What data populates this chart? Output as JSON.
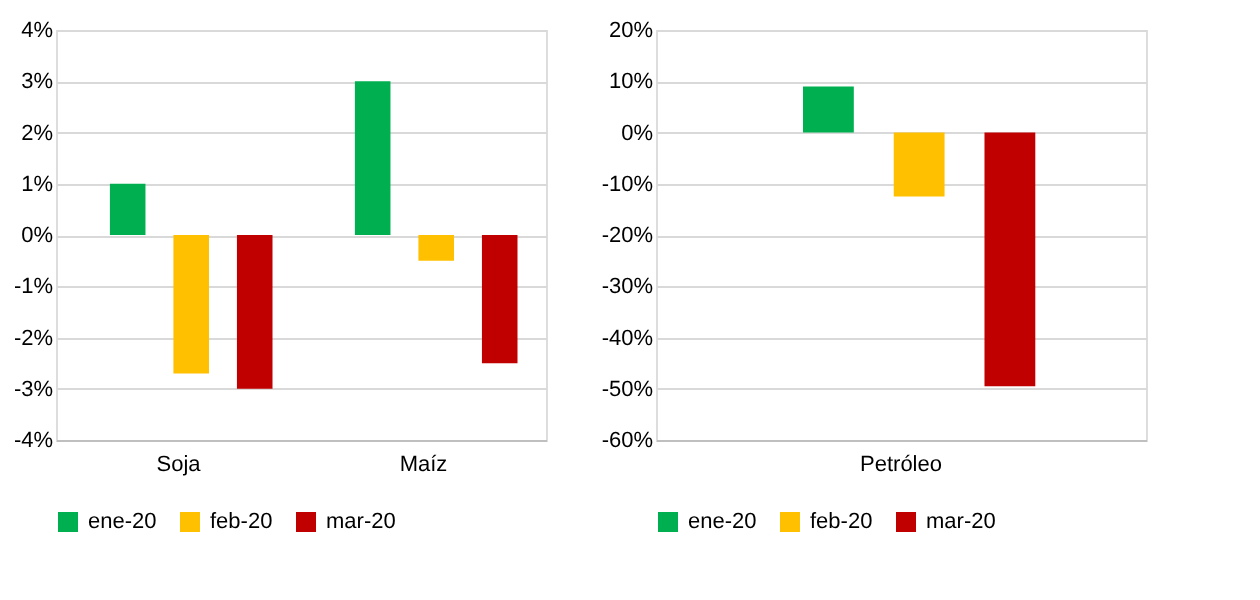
{
  "chart_data": [
    {
      "type": "bar",
      "categories": [
        "Soja",
        "Maíz"
      ],
      "series": [
        {
          "name": "ene-20",
          "color": "#00b050",
          "values": [
            1.0,
            3.0
          ]
        },
        {
          "name": "feb-20",
          "color": "#ffc000",
          "values": [
            -2.7,
            -0.5
          ]
        },
        {
          "name": "mar-20",
          "color": "#c00000",
          "values": [
            -3.0,
            -2.5
          ]
        }
      ],
      "ylim": [
        -4,
        4
      ],
      "yticks": [
        {
          "value": -4,
          "label": "-4%"
        },
        {
          "value": -3,
          "label": "-3%"
        },
        {
          "value": -2,
          "label": "-2%"
        },
        {
          "value": -1,
          "label": "-1%"
        },
        {
          "value": 0,
          "label": "0%"
        },
        {
          "value": 1,
          "label": "1%"
        },
        {
          "value": 2,
          "label": "2%"
        },
        {
          "value": 3,
          "label": "3%"
        },
        {
          "value": 4,
          "label": "4%"
        }
      ],
      "grid": "y",
      "legend": "bottom"
    },
    {
      "type": "bar",
      "categories": [
        "Petróleo"
      ],
      "series": [
        {
          "name": "ene-20",
          "color": "#00b050",
          "values": [
            9
          ]
        },
        {
          "name": "feb-20",
          "color": "#ffc000",
          "values": [
            -12.5
          ]
        },
        {
          "name": "mar-20",
          "color": "#c00000",
          "values": [
            -49.5
          ]
        }
      ],
      "ylim": [
        -60,
        20
      ],
      "yticks": [
        {
          "value": -60,
          "label": "-60%"
        },
        {
          "value": -50,
          "label": "-50%"
        },
        {
          "value": -40,
          "label": "-40%"
        },
        {
          "value": -30,
          "label": "-30%"
        },
        {
          "value": -20,
          "label": "-20%"
        },
        {
          "value": -10,
          "label": "-10%"
        },
        {
          "value": 0,
          "label": "0%"
        },
        {
          "value": 10,
          "label": "10%"
        },
        {
          "value": 20,
          "label": "20%"
        }
      ],
      "grid": "y",
      "legend": "bottom"
    }
  ]
}
